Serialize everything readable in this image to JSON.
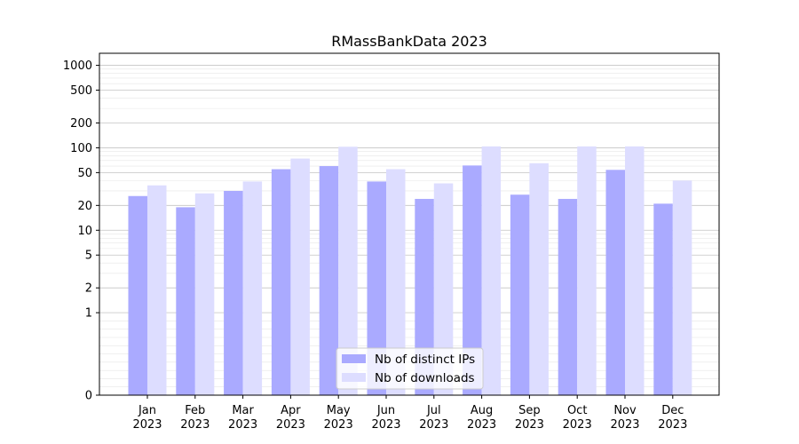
{
  "chart_data": {
    "type": "bar",
    "title": "RMassBankData 2023",
    "xlabel": "",
    "ylabel": "",
    "y_scale": "symlog",
    "y_ticks": [
      0,
      1,
      2,
      5,
      10,
      20,
      50,
      100,
      200,
      500,
      1000
    ],
    "ylim": [
      0,
      1400
    ],
    "grid": "horizontal",
    "legend_position": "lower-center",
    "categories": [
      "Jan\n2023",
      "Feb\n2023",
      "Mar\n2023",
      "Apr\n2023",
      "May\n2023",
      "Jun\n2023",
      "Jul\n2023",
      "Aug\n2023",
      "Sep\n2023",
      "Oct\n2023",
      "Nov\n2023",
      "Dec\n2023"
    ],
    "series": [
      {
        "name": "Nb of distinct IPs",
        "color": "#aaaaff",
        "values": [
          26,
          19,
          30,
          55,
          60,
          39,
          24,
          61,
          27,
          24,
          54,
          21
        ]
      },
      {
        "name": "Nb of downloads",
        "color": "#ddddff",
        "values": [
          35,
          28,
          39,
          74,
          103,
          55,
          37,
          104,
          65,
          104,
          104,
          40
        ]
      }
    ]
  }
}
